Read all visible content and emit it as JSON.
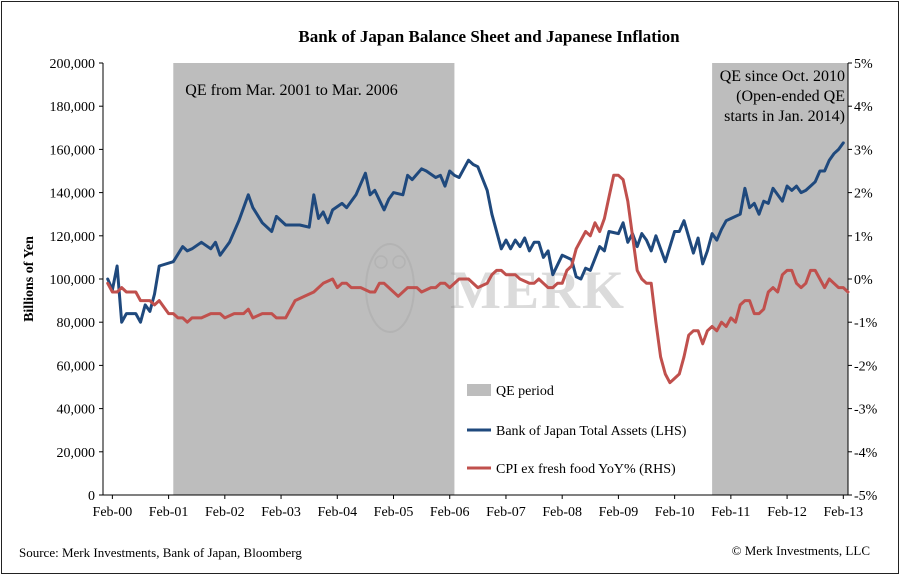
{
  "chart_data": {
    "type": "line",
    "title": "Bank of Japan Balance Sheet and Japanese Inflation",
    "ylabel_left": "Billions of Yen",
    "ylim_left": [
      0,
      200000
    ],
    "left_ticks": [
      "0",
      "20,000",
      "40,000",
      "60,000",
      "80,000",
      "100,000",
      "120,000",
      "140,000",
      "160,000",
      "180,000",
      "200,000"
    ],
    "ylim_right": [
      -5,
      5
    ],
    "right_ticks": [
      "-5%",
      "-4%",
      "-3%",
      "-2%",
      "-1%",
      "0%",
      "1%",
      "2%",
      "3%",
      "4%",
      "5%"
    ],
    "x_ticks": [
      "Feb-00",
      "Feb-01",
      "Feb-02",
      "Feb-03",
      "Feb-04",
      "Feb-05",
      "Feb-06",
      "Feb-07",
      "Feb-08",
      "Feb-09",
      "Feb-10",
      "Feb-11",
      "Feb-12",
      "Feb-13"
    ],
    "shaded_periods": [
      {
        "start": "2001-03",
        "end": "2006-03",
        "label": "QE from Mar. 2001 to Mar. 2006"
      },
      {
        "start": "2010-10",
        "end": "2013-03",
        "label_lines": [
          "QE since Oct. 2010",
          "(Open-ended QE",
          "starts in Jan. 2014)"
        ]
      }
    ],
    "legend": [
      {
        "label": "QE period",
        "color": "#bdbdbd",
        "kind": "patch"
      },
      {
        "label": "Bank of Japan Total Assets (LHS)",
        "color": "#1f497d",
        "kind": "line"
      },
      {
        "label": "CPI ex fresh food YoY% (RHS)",
        "color": "#c0504d",
        "kind": "line"
      }
    ],
    "series": [
      {
        "name": "Bank of Japan Total Assets (LHS)",
        "axis": "left",
        "color": "#1f497d",
        "points": [
          [
            "2000-01",
            100000
          ],
          [
            "2000-02",
            95000
          ],
          [
            "2000-03",
            106000
          ],
          [
            "2000-04",
            80000
          ],
          [
            "2000-05",
            84000
          ],
          [
            "2000-07",
            84000
          ],
          [
            "2000-08",
            80000
          ],
          [
            "2000-09",
            88000
          ],
          [
            "2000-10",
            85000
          ],
          [
            "2000-11",
            93000
          ],
          [
            "2000-12",
            106000
          ],
          [
            "2001-03",
            108000
          ],
          [
            "2001-05",
            115000
          ],
          [
            "2001-06",
            113000
          ],
          [
            "2001-07",
            114000
          ],
          [
            "2001-09",
            117000
          ],
          [
            "2001-11",
            114000
          ],
          [
            "2001-12",
            117000
          ],
          [
            "2002-01",
            111000
          ],
          [
            "2002-03",
            117000
          ],
          [
            "2002-05",
            127000
          ],
          [
            "2002-07",
            139000
          ],
          [
            "2002-08",
            133000
          ],
          [
            "2002-10",
            126000
          ],
          [
            "2002-12",
            122000
          ],
          [
            "2003-01",
            129000
          ],
          [
            "2003-03",
            125000
          ],
          [
            "2003-06",
            125000
          ],
          [
            "2003-08",
            124000
          ],
          [
            "2003-09",
            139000
          ],
          [
            "2003-10",
            128000
          ],
          [
            "2003-11",
            131000
          ],
          [
            "2003-12",
            126000
          ],
          [
            "2004-01",
            132000
          ],
          [
            "2004-03",
            135000
          ],
          [
            "2004-04",
            133000
          ],
          [
            "2004-06",
            139000
          ],
          [
            "2004-08",
            149000
          ],
          [
            "2004-09",
            139000
          ],
          [
            "2004-10",
            141000
          ],
          [
            "2004-12",
            132000
          ],
          [
            "2005-01",
            137000
          ],
          [
            "2005-02",
            140000
          ],
          [
            "2005-04",
            139000
          ],
          [
            "2005-05",
            148000
          ],
          [
            "2005-06",
            146000
          ],
          [
            "2005-08",
            151000
          ],
          [
            "2005-09",
            150000
          ],
          [
            "2005-11",
            147000
          ],
          [
            "2005-12",
            148000
          ],
          [
            "2006-01",
            143000
          ],
          [
            "2006-02",
            150000
          ],
          [
            "2006-03",
            148000
          ],
          [
            "2006-04",
            147000
          ],
          [
            "2006-06",
            155000
          ],
          [
            "2006-07",
            153000
          ],
          [
            "2006-08",
            152000
          ],
          [
            "2006-10",
            141000
          ],
          [
            "2006-11",
            130000
          ],
          [
            "2007-01",
            114000
          ],
          [
            "2007-02",
            118000
          ],
          [
            "2007-03",
            114000
          ],
          [
            "2007-04",
            118000
          ],
          [
            "2007-05",
            115000
          ],
          [
            "2007-06",
            119000
          ],
          [
            "2007-07",
            113000
          ],
          [
            "2007-08",
            117000
          ],
          [
            "2007-09",
            117000
          ],
          [
            "2007-10",
            110000
          ],
          [
            "2007-11",
            113000
          ],
          [
            "2007-12",
            102000
          ],
          [
            "2008-02",
            111000
          ],
          [
            "2008-04",
            109000
          ],
          [
            "2008-05",
            101000
          ],
          [
            "2008-06",
            100000
          ],
          [
            "2008-07",
            105000
          ],
          [
            "2008-08",
            104000
          ],
          [
            "2008-10",
            115000
          ],
          [
            "2008-11",
            113000
          ],
          [
            "2008-12",
            122000
          ],
          [
            "2009-02",
            121000
          ],
          [
            "2009-03",
            126000
          ],
          [
            "2009-04",
            117000
          ],
          [
            "2009-05",
            121000
          ],
          [
            "2009-06",
            115000
          ],
          [
            "2009-07",
            121000
          ],
          [
            "2009-08",
            118000
          ],
          [
            "2009-09",
            113000
          ],
          [
            "2009-10",
            120000
          ],
          [
            "2009-12",
            108000
          ],
          [
            "2010-02",
            122000
          ],
          [
            "2010-03",
            122000
          ],
          [
            "2010-04",
            127000
          ],
          [
            "2010-06",
            112000
          ],
          [
            "2010-07",
            119000
          ],
          [
            "2010-08",
            107000
          ],
          [
            "2010-09",
            113000
          ],
          [
            "2010-10",
            121000
          ],
          [
            "2010-11",
            118000
          ],
          [
            "2010-12",
            123000
          ],
          [
            "2011-01",
            127000
          ],
          [
            "2011-02",
            128000
          ],
          [
            "2011-04",
            130000
          ],
          [
            "2011-05",
            142000
          ],
          [
            "2011-06",
            133000
          ],
          [
            "2011-07",
            135000
          ],
          [
            "2011-08",
            130000
          ],
          [
            "2011-09",
            136000
          ],
          [
            "2011-10",
            135000
          ],
          [
            "2011-11",
            142000
          ],
          [
            "2011-12",
            139000
          ],
          [
            "2012-01",
            136000
          ],
          [
            "2012-02",
            143000
          ],
          [
            "2012-03",
            141000
          ],
          [
            "2012-04",
            143000
          ],
          [
            "2012-05",
            140000
          ],
          [
            "2012-06",
            141000
          ],
          [
            "2012-07",
            143000
          ],
          [
            "2012-08",
            145000
          ],
          [
            "2012-09",
            150000
          ],
          [
            "2012-10",
            150000
          ],
          [
            "2012-11",
            155000
          ],
          [
            "2012-12",
            158000
          ],
          [
            "2013-01",
            160000
          ],
          [
            "2013-02",
            163000
          ]
        ]
      },
      {
        "name": "CPI ex fresh food YoY% (RHS)",
        "axis": "right",
        "color": "#c0504d",
        "points": [
          [
            "2000-01",
            -0.1
          ],
          [
            "2000-02",
            -0.3
          ],
          [
            "2000-03",
            -0.3
          ],
          [
            "2000-04",
            -0.2
          ],
          [
            "2000-05",
            -0.3
          ],
          [
            "2000-07",
            -0.3
          ],
          [
            "2000-08",
            -0.5
          ],
          [
            "2000-09",
            -0.5
          ],
          [
            "2000-10",
            -0.5
          ],
          [
            "2000-11",
            -0.6
          ],
          [
            "2000-12",
            -0.5
          ],
          [
            "2001-02",
            -0.8
          ],
          [
            "2001-03",
            -0.8
          ],
          [
            "2001-04",
            -0.9
          ],
          [
            "2001-05",
            -0.9
          ],
          [
            "2001-06",
            -1.0
          ],
          [
            "2001-07",
            -0.9
          ],
          [
            "2001-09",
            -0.9
          ],
          [
            "2001-11",
            -0.8
          ],
          [
            "2002-01",
            -0.8
          ],
          [
            "2002-02",
            -0.9
          ],
          [
            "2002-04",
            -0.8
          ],
          [
            "2002-06",
            -0.8
          ],
          [
            "2002-07",
            -0.7
          ],
          [
            "2002-08",
            -0.9
          ],
          [
            "2002-10",
            -0.8
          ],
          [
            "2002-12",
            -0.8
          ],
          [
            "2003-01",
            -0.9
          ],
          [
            "2003-03",
            -0.9
          ],
          [
            "2003-05",
            -0.5
          ],
          [
            "2003-07",
            -0.4
          ],
          [
            "2003-09",
            -0.3
          ],
          [
            "2003-11",
            -0.1
          ],
          [
            "2004-01",
            0.0
          ],
          [
            "2004-02",
            -0.2
          ],
          [
            "2004-03",
            -0.1
          ],
          [
            "2004-04",
            -0.1
          ],
          [
            "2004-05",
            -0.2
          ],
          [
            "2004-07",
            -0.2
          ],
          [
            "2004-09",
            -0.3
          ],
          [
            "2004-10",
            -0.3
          ],
          [
            "2004-11",
            -0.1
          ],
          [
            "2004-12",
            -0.1
          ],
          [
            "2005-01",
            -0.2
          ],
          [
            "2005-03",
            -0.4
          ],
          [
            "2005-05",
            -0.2
          ],
          [
            "2005-07",
            -0.2
          ],
          [
            "2005-08",
            -0.3
          ],
          [
            "2005-10",
            -0.2
          ],
          [
            "2005-11",
            -0.2
          ],
          [
            "2005-12",
            -0.1
          ],
          [
            "2006-01",
            -0.1
          ],
          [
            "2006-02",
            -0.2
          ],
          [
            "2006-03",
            -0.1
          ],
          [
            "2006-04",
            0.0
          ],
          [
            "2006-06",
            0.0
          ],
          [
            "2006-08",
            -0.2
          ],
          [
            "2006-10",
            -0.1
          ],
          [
            "2006-11",
            0.1
          ],
          [
            "2006-12",
            0.2
          ],
          [
            "2007-01",
            0.2
          ],
          [
            "2007-02",
            0.1
          ],
          [
            "2007-04",
            0.1
          ],
          [
            "2007-05",
            0.0
          ],
          [
            "2007-07",
            -0.1
          ],
          [
            "2007-08",
            -0.1
          ],
          [
            "2007-09",
            0.0
          ],
          [
            "2007-10",
            -0.1
          ],
          [
            "2007-11",
            -0.2
          ],
          [
            "2007-12",
            -0.2
          ],
          [
            "2008-01",
            -0.1
          ],
          [
            "2008-02",
            -0.1
          ],
          [
            "2008-03",
            0.2
          ],
          [
            "2008-04",
            0.3
          ],
          [
            "2008-05",
            0.7
          ],
          [
            "2008-06",
            0.9
          ],
          [
            "2008-07",
            1.1
          ],
          [
            "2008-08",
            1.0
          ],
          [
            "2008-09",
            1.3
          ],
          [
            "2008-10",
            1.1
          ],
          [
            "2008-11",
            1.4
          ],
          [
            "2008-12",
            1.9
          ],
          [
            "2009-01",
            2.4
          ],
          [
            "2009-02",
            2.4
          ],
          [
            "2009-03",
            2.3
          ],
          [
            "2009-04",
            1.8
          ],
          [
            "2009-05",
            1.0
          ],
          [
            "2009-06",
            0.2
          ],
          [
            "2009-07",
            0.0
          ],
          [
            "2009-08",
            -0.1
          ],
          [
            "2009-09",
            -0.1
          ],
          [
            "2009-10",
            -1.0
          ],
          [
            "2009-11",
            -1.8
          ],
          [
            "2009-12",
            -2.2
          ],
          [
            "2010-01",
            -2.4
          ],
          [
            "2010-02",
            -2.3
          ],
          [
            "2010-03",
            -2.2
          ],
          [
            "2010-04",
            -1.8
          ],
          [
            "2010-05",
            -1.3
          ],
          [
            "2010-06",
            -1.2
          ],
          [
            "2010-07",
            -1.2
          ],
          [
            "2010-08",
            -1.5
          ],
          [
            "2010-09",
            -1.2
          ],
          [
            "2010-10",
            -1.1
          ],
          [
            "2010-11",
            -1.2
          ],
          [
            "2010-12",
            -1.0
          ],
          [
            "2011-01",
            -1.1
          ],
          [
            "2011-02",
            -0.9
          ],
          [
            "2011-03",
            -1.0
          ],
          [
            "2011-04",
            -0.6
          ],
          [
            "2011-05",
            -0.5
          ],
          [
            "2011-06",
            -0.5
          ],
          [
            "2011-07",
            -0.8
          ],
          [
            "2011-08",
            -0.8
          ],
          [
            "2011-09",
            -0.7
          ],
          [
            "2011-10",
            -0.3
          ],
          [
            "2011-11",
            -0.2
          ],
          [
            "2011-12",
            -0.3
          ],
          [
            "2012-01",
            0.1
          ],
          [
            "2012-02",
            0.2
          ],
          [
            "2012-03",
            0.2
          ],
          [
            "2012-04",
            -0.1
          ],
          [
            "2012-05",
            -0.2
          ],
          [
            "2012-06",
            -0.1
          ],
          [
            "2012-07",
            0.2
          ],
          [
            "2012-08",
            0.2
          ],
          [
            "2012-09",
            0.0
          ],
          [
            "2012-10",
            -0.2
          ],
          [
            "2012-11",
            0.0
          ],
          [
            "2012-12",
            -0.1
          ],
          [
            "2013-01",
            -0.2
          ],
          [
            "2013-02",
            -0.2
          ],
          [
            "2013-03",
            -0.3
          ]
        ]
      }
    ],
    "watermark": "MERK"
  },
  "footer": {
    "source": "Source: Merk Investments, Bank of Japan, Bloomberg",
    "copyright": "© Merk Investments, LLC"
  }
}
